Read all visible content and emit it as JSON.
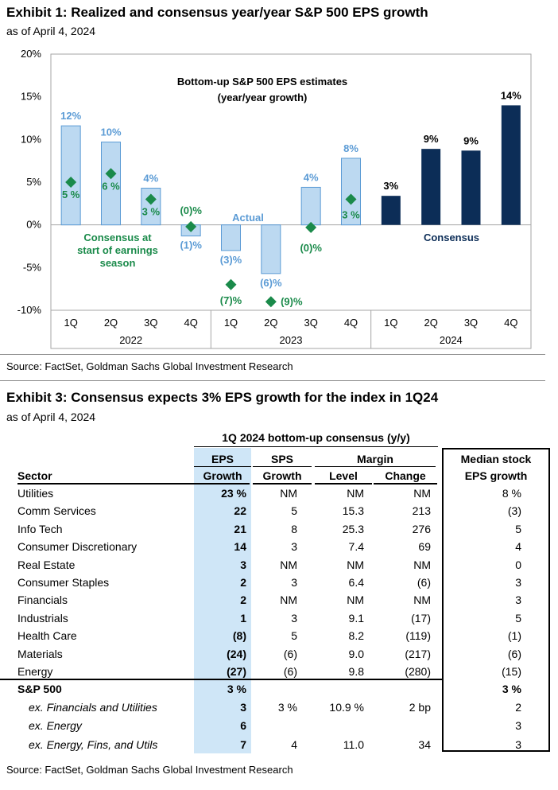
{
  "exhibit1": {
    "title": "Exhibit 1: Realized and consensus year/year S&P 500 EPS growth",
    "asof": "as of April 4, 2024",
    "source": "Source: FactSet, Goldman Sachs Global Investment Research"
  },
  "chart_data": {
    "type": "bar",
    "title": "Bottom-up S&P 500 EPS estimates",
    "subtitle": "(year/year growth)",
    "ylim": [
      -10,
      20
    ],
    "yticks": [
      -10,
      -5,
      0,
      5,
      10,
      15,
      20
    ],
    "ytick_labels": [
      "-10%",
      "-5%",
      "0%",
      "5%",
      "10%",
      "15%",
      "20%"
    ],
    "categories": [
      "1Q",
      "2Q",
      "3Q",
      "4Q",
      "1Q",
      "2Q",
      "3Q",
      "4Q",
      "1Q",
      "2Q",
      "3Q",
      "4Q"
    ],
    "year_groups": [
      {
        "label": "2022",
        "start": 0,
        "end": 3
      },
      {
        "label": "2023",
        "start": 4,
        "end": 7
      },
      {
        "label": "2024",
        "start": 8,
        "end": 11
      }
    ],
    "series": [
      {
        "name": "Actual",
        "color": "#bcd9f1",
        "edge": "#5b9bd5",
        "label_color": "#5b9bd5",
        "values": [
          11.6,
          9.7,
          4.3,
          -1.3,
          -3.0,
          -5.7,
          4.4,
          7.8,
          null,
          null,
          null,
          null
        ],
        "labels": [
          "12%",
          "10%",
          "4%",
          "(1)%",
          "(3)%",
          "(6)%",
          "4%",
          "8%",
          null,
          null,
          null,
          null
        ]
      },
      {
        "name": "Consensus",
        "color": "#0c2d57",
        "label_color": "#000000",
        "values": [
          null,
          null,
          null,
          null,
          null,
          null,
          null,
          null,
          3.4,
          8.9,
          8.7,
          14.0
        ],
        "labels": [
          null,
          null,
          null,
          null,
          null,
          null,
          null,
          null,
          "3%",
          "9%",
          "9%",
          "14%"
        ]
      },
      {
        "name": "Consensus at start of earnings season",
        "color": "#1a8a4a",
        "label_color": "#1a8a4a",
        "values": [
          5,
          6,
          3,
          -0.2,
          -7,
          -9,
          -0.3,
          3,
          null,
          null,
          null,
          null
        ],
        "labels": [
          "5 %",
          "6 %",
          "3 %",
          "(0)%",
          "(7)%",
          "(9)%",
          "(0)%",
          "3 %",
          null,
          null,
          null,
          null
        ]
      }
    ],
    "annotations": {
      "actual": "Actual",
      "consensus": "Consensus",
      "consensus_start_1": "Consensus at",
      "consensus_start_2": "start of earnings",
      "consensus_start_3": "season"
    }
  },
  "exhibit3": {
    "title": "Exhibit 3: Consensus expects 3% EPS growth for the index in 1Q24",
    "asof": "as of April 4, 2024",
    "source": "Source: FactSet, Goldman Sachs Global Investment Research",
    "group_header": "1Q 2024 bottom-up consensus (y/y)",
    "headers": {
      "sector": "Sector",
      "eps1": "EPS",
      "eps2": "Growth",
      "sps1": "SPS",
      "sps2": "Growth",
      "margin": "Margin",
      "level": "Level",
      "change": "Change",
      "median1": "Median stock",
      "median2": "EPS growth"
    },
    "rows": [
      {
        "sector": "Utilities",
        "eps": "23 %",
        "sps": "NM",
        "level": "NM",
        "change": "NM",
        "median": "8 %"
      },
      {
        "sector": "Comm Services",
        "eps": "22",
        "sps": "5",
        "level": "15.3",
        "change": "213",
        "median": "(3)"
      },
      {
        "sector": "Info Tech",
        "eps": "21",
        "sps": "8",
        "level": "25.3",
        "change": "276",
        "median": "5"
      },
      {
        "sector": "Consumer Discretionary",
        "eps": "14",
        "sps": "3",
        "level": "7.4",
        "change": "69",
        "median": "4"
      },
      {
        "sector": "Real Estate",
        "eps": "3",
        "sps": "NM",
        "level": "NM",
        "change": "NM",
        "median": "0"
      },
      {
        "sector": "Consumer Staples",
        "eps": "2",
        "sps": "3",
        "level": "6.4",
        "change": "(6)",
        "median": "3"
      },
      {
        "sector": "Financials",
        "eps": "2",
        "sps": "NM",
        "level": "NM",
        "change": "NM",
        "median": "3"
      },
      {
        "sector": "Industrials",
        "eps": "1",
        "sps": "3",
        "level": "9.1",
        "change": "(17)",
        "median": "5"
      },
      {
        "sector": "Health Care",
        "eps": "(8)",
        "sps": "5",
        "level": "8.2",
        "change": "(119)",
        "median": "(1)"
      },
      {
        "sector": "Materials",
        "eps": "(24)",
        "sps": "(6)",
        "level": "9.0",
        "change": "(217)",
        "median": "(6)"
      },
      {
        "sector": "Energy",
        "eps": "(27)",
        "sps": "(6)",
        "level": "9.8",
        "change": "(280)",
        "median": "(15)"
      }
    ],
    "summary_rows": [
      {
        "sector": "S&P 500",
        "eps": "3 %",
        "sps": "",
        "level": "",
        "change": "",
        "median": "3 %",
        "bold": true
      },
      {
        "sector": "ex. Financials and Utilities",
        "eps": "3",
        "sps": "3 %",
        "level": "10.9 %",
        "change": "2 bp",
        "median": "2"
      },
      {
        "sector": "ex. Energy",
        "eps": "6",
        "sps": "",
        "level": "",
        "change": "",
        "median": "3"
      },
      {
        "sector": "ex. Energy, Fins, and Utils",
        "eps": "7",
        "sps": "4",
        "level": "11.0",
        "change": "34",
        "median": "3"
      }
    ]
  }
}
